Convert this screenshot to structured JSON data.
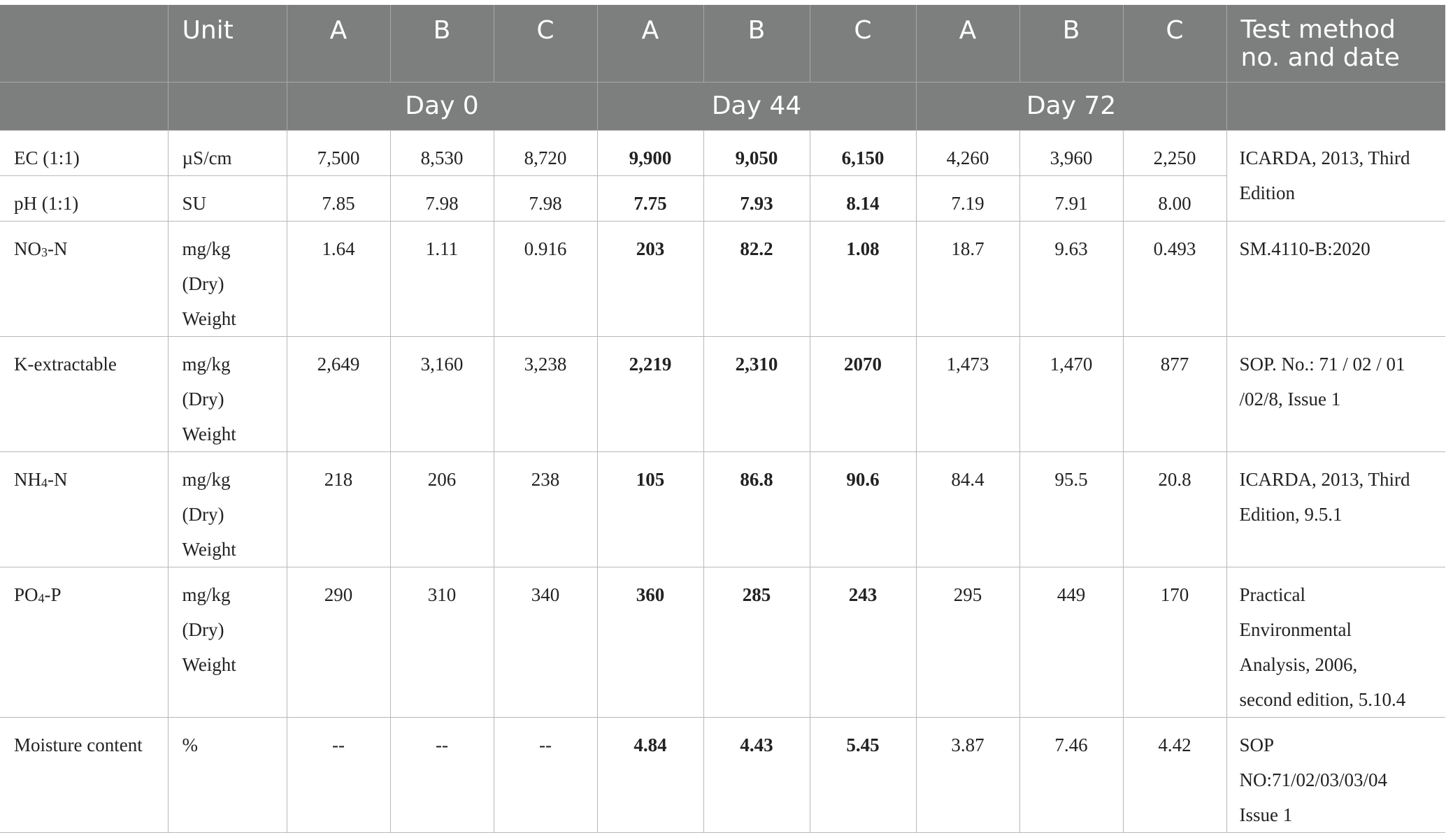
{
  "header": {
    "unit": "Unit",
    "cols": [
      "A",
      "B",
      "C",
      "A",
      "B",
      "C",
      "A",
      "B",
      "C"
    ],
    "method_line1": "Test method",
    "method_line2": "no. and date",
    "days": [
      "Day 0",
      "Day 44",
      "Day 72"
    ]
  },
  "rows": [
    {
      "param": "EC (1:1)",
      "unit": [
        "µS/cm"
      ],
      "values": [
        "7,500",
        "8,530",
        "8,720",
        "9,900",
        "9,050",
        "6,150",
        "4,260",
        "3,960",
        "2,250"
      ],
      "method": [
        "ICARDA, 2013, Third",
        "Edition"
      ]
    },
    {
      "param": "pH (1:1)",
      "unit": [
        "SU"
      ],
      "values": [
        "7.85",
        "7.98",
        "7.98",
        "7.75",
        "7.93",
        "8.14",
        "7.19",
        "7.91",
        "8.00"
      ]
    },
    {
      "param_main": "NO",
      "param_sub": "3",
      "param_rest": "-N",
      "unit": [
        "mg/kg",
        "(Dry)",
        "Weight"
      ],
      "values": [
        "1.64",
        "1.11",
        "0.916",
        "203",
        "82.2",
        "1.08",
        "18.7",
        "9.63",
        "0.493"
      ],
      "method": [
        "SM.4110-B:2020"
      ]
    },
    {
      "param": "K-extractable",
      "unit": [
        "mg/kg",
        "(Dry)",
        "Weight"
      ],
      "values": [
        "2,649",
        "3,160",
        "3,238",
        "2,219",
        "2,310",
        "2070",
        "1,473",
        "1,470",
        "877"
      ],
      "method": [
        "SOP. No.: 71 / 02 / 01",
        "/02/8, Issue 1"
      ]
    },
    {
      "param_main": "NH",
      "param_sub": "4",
      "param_rest": "-N",
      "unit": [
        "mg/kg",
        "(Dry)",
        "Weight"
      ],
      "values": [
        "218",
        "206",
        "238",
        "105",
        "86.8",
        "90.6",
        "84.4",
        "95.5",
        "20.8"
      ],
      "method": [
        "ICARDA, 2013, Third",
        "Edition, 9.5.1"
      ]
    },
    {
      "param_main": "PO",
      "param_sub": "4",
      "param_rest": "-P",
      "unit": [
        "mg/kg",
        "(Dry)",
        "Weight"
      ],
      "values": [
        "290",
        "310",
        "340",
        "360",
        "285",
        "243",
        "295",
        "449",
        "170"
      ],
      "method": [
        "Practical",
        "Environmental",
        "Analysis, 2006,",
        "second edition, 5.10.4"
      ]
    },
    {
      "param": "Moisture content",
      "unit": [
        "%"
      ],
      "values": [
        "--",
        "--",
        "--",
        "4.84",
        "4.43",
        "5.45",
        "3.87",
        "7.46",
        "4.42"
      ],
      "method": [
        "SOP",
        "NO:71/02/03/03/04",
        "Issue 1"
      ]
    }
  ]
}
